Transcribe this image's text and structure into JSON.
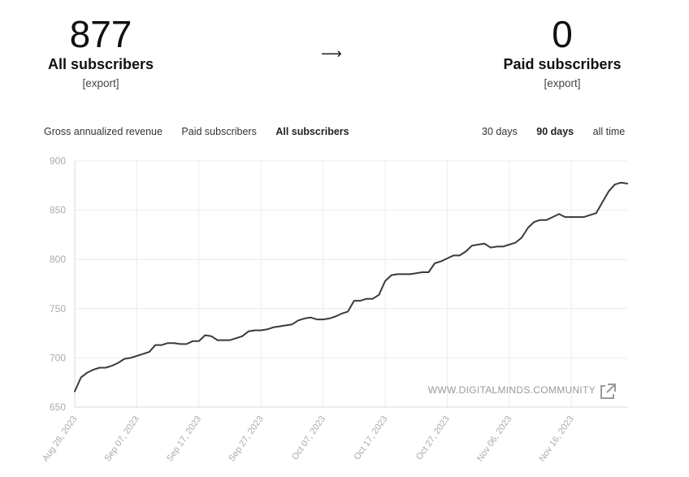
{
  "summary": {
    "all_subscribers": {
      "value": "877",
      "label": "All subscribers",
      "export": "[export]"
    },
    "arrow": "⟶",
    "paid_subscribers": {
      "value": "0",
      "label": "Paid subscribers",
      "export": "[export]"
    }
  },
  "metric_tabs": [
    "Gross annualized revenue",
    "Paid subscribers",
    "All subscribers"
  ],
  "metric_tab_active": 2,
  "range_tabs": [
    "30 days",
    "90 days",
    "all time"
  ],
  "range_tab_active": 1,
  "watermark": "WWW.DIGITALMINDS.COMMUNITY",
  "colors": {
    "line": "#3a3a3a",
    "grid": "#ececec",
    "axis_text": "#aaaaaa",
    "watermark": "#9a9a9a"
  },
  "chart_data": {
    "type": "line",
    "title": "",
    "xlabel": "",
    "ylabel": "",
    "ylim": [
      650,
      900
    ],
    "yticks": [
      650,
      700,
      750,
      800,
      850,
      900
    ],
    "x_start": "Aug 28, 2023",
    "xtick_labels": [
      "Aug 28, 2023",
      "Sep 07, 2023",
      "Sep 17, 2023",
      "Sep 27, 2023",
      "Oct 07, 2023",
      "Oct 17, 2023",
      "Oct 27, 2023",
      "Nov 06, 2023",
      "Nov 16, 2023"
    ],
    "xtick_days": [
      0,
      10,
      20,
      30,
      40,
      50,
      60,
      70,
      80
    ],
    "x_max_day": 89,
    "series": [
      {
        "name": "All subscribers",
        "values": [
          666,
          680,
          685,
          688,
          690,
          690,
          692,
          695,
          699,
          700,
          702,
          704,
          706,
          713,
          713,
          715,
          715,
          714,
          714,
          717,
          717,
          723,
          722,
          718,
          718,
          718,
          720,
          722,
          727,
          728,
          728,
          729,
          731,
          732,
          733,
          734,
          738,
          740,
          741,
          739,
          739,
          740,
          742,
          745,
          747,
          758,
          758,
          760,
          760,
          764,
          778,
          784,
          785,
          785,
          785,
          786,
          787,
          787,
          796,
          798,
          801,
          804,
          804,
          808,
          814,
          815,
          816,
          812,
          813,
          813,
          815,
          817,
          822,
          832,
          838,
          840,
          840,
          843,
          846,
          843,
          843,
          843,
          843,
          845,
          847,
          858,
          869,
          876,
          878,
          877
        ]
      }
    ]
  }
}
